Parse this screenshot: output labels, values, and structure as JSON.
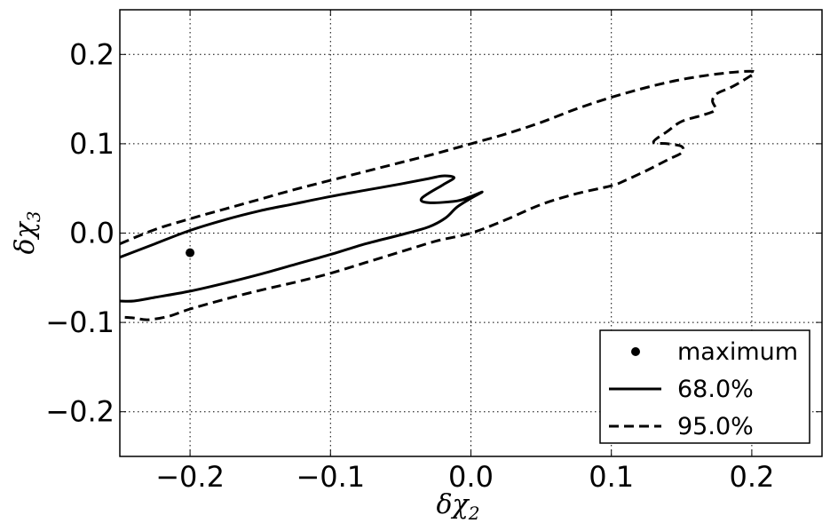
{
  "chart_data": {
    "type": "line",
    "title": "",
    "xlabel": "δχ",
    "xlabel_sub": "2",
    "ylabel": "δχ",
    "ylabel_sub": "3",
    "xlim": [
      -0.25,
      0.25
    ],
    "ylim": [
      -0.25,
      0.25
    ],
    "x_ticks": [
      -0.2,
      -0.1,
      0.0,
      0.1,
      0.2
    ],
    "x_tick_labels": [
      "−0.2",
      "−0.1",
      "0.0",
      "0.1",
      "0.2"
    ],
    "y_ticks": [
      -0.2,
      -0.1,
      0.0,
      0.1,
      0.2
    ],
    "y_tick_labels": [
      "−0.2",
      "−0.1",
      "0.0",
      "0.1",
      "0.2"
    ],
    "grid": true,
    "legend_position": "bottom-right",
    "series": [
      {
        "name": "maximum",
        "style": "point",
        "color": "#000000",
        "points": [
          [
            -0.2,
            -0.022
          ]
        ]
      },
      {
        "name": "68.0%",
        "style": "solid",
        "color": "#000000",
        "points": [
          [
            -0.25,
            -0.027
          ],
          [
            -0.225,
            -0.012
          ],
          [
            -0.2,
            0.003
          ],
          [
            -0.175,
            0.015
          ],
          [
            -0.15,
            0.025
          ],
          [
            -0.125,
            0.033
          ],
          [
            -0.1,
            0.041
          ],
          [
            -0.075,
            0.048
          ],
          [
            -0.05,
            0.055
          ],
          [
            -0.03,
            0.061
          ],
          [
            -0.02,
            0.064
          ],
          [
            -0.012,
            0.062
          ],
          [
            -0.02,
            0.054
          ],
          [
            -0.035,
            0.039
          ],
          [
            -0.03,
            0.034
          ],
          [
            -0.01,
            0.036
          ],
          [
            0.0,
            0.041
          ],
          [
            0.008,
            0.046
          ],
          [
            0.0,
            0.039
          ],
          [
            -0.01,
            0.029
          ],
          [
            -0.018,
            0.017
          ],
          [
            -0.03,
            0.007
          ],
          [
            -0.05,
            -0.002
          ],
          [
            -0.075,
            -0.012
          ],
          [
            -0.1,
            -0.024
          ],
          [
            -0.125,
            -0.035
          ],
          [
            -0.15,
            -0.046
          ],
          [
            -0.175,
            -0.056
          ],
          [
            -0.2,
            -0.065
          ],
          [
            -0.225,
            -0.072
          ],
          [
            -0.24,
            -0.076
          ],
          [
            -0.25,
            -0.076
          ]
        ]
      },
      {
        "name": "95.0%",
        "style": "dashed",
        "color": "#000000",
        "points": [
          [
            -0.25,
            -0.012
          ],
          [
            -0.225,
            0.004
          ],
          [
            -0.2,
            0.016
          ],
          [
            -0.175,
            0.027
          ],
          [
            -0.15,
            0.038
          ],
          [
            -0.125,
            0.049
          ],
          [
            -0.1,
            0.059
          ],
          [
            -0.075,
            0.069
          ],
          [
            -0.05,
            0.079
          ],
          [
            -0.025,
            0.089
          ],
          [
            0.0,
            0.1
          ],
          [
            0.025,
            0.111
          ],
          [
            0.05,
            0.124
          ],
          [
            0.075,
            0.139
          ],
          [
            0.1,
            0.152
          ],
          [
            0.125,
            0.163
          ],
          [
            0.15,
            0.172
          ],
          [
            0.175,
            0.178
          ],
          [
            0.195,
            0.181
          ],
          [
            0.202,
            0.18
          ],
          [
            0.195,
            0.172
          ],
          [
            0.185,
            0.163
          ],
          [
            0.175,
            0.156
          ],
          [
            0.172,
            0.148
          ],
          [
            0.174,
            0.138
          ],
          [
            0.165,
            0.132
          ],
          [
            0.15,
            0.125
          ],
          [
            0.14,
            0.114
          ],
          [
            0.13,
            0.102
          ],
          [
            0.14,
            0.1
          ],
          [
            0.15,
            0.097
          ],
          [
            0.15,
            0.09
          ],
          [
            0.14,
            0.082
          ],
          [
            0.125,
            0.07
          ],
          [
            0.11,
            0.059
          ],
          [
            0.1,
            0.053
          ],
          [
            0.075,
            0.044
          ],
          [
            0.05,
            0.032
          ],
          [
            0.025,
            0.015
          ],
          [
            0.0,
            0.0
          ],
          [
            -0.025,
            -0.009
          ],
          [
            -0.05,
            -0.021
          ],
          [
            -0.075,
            -0.033
          ],
          [
            -0.1,
            -0.045
          ],
          [
            -0.125,
            -0.055
          ],
          [
            -0.15,
            -0.064
          ],
          [
            -0.175,
            -0.074
          ],
          [
            -0.2,
            -0.085
          ],
          [
            -0.215,
            -0.093
          ],
          [
            -0.23,
            -0.097
          ],
          [
            -0.24,
            -0.095
          ],
          [
            -0.25,
            -0.094
          ]
        ]
      }
    ]
  }
}
